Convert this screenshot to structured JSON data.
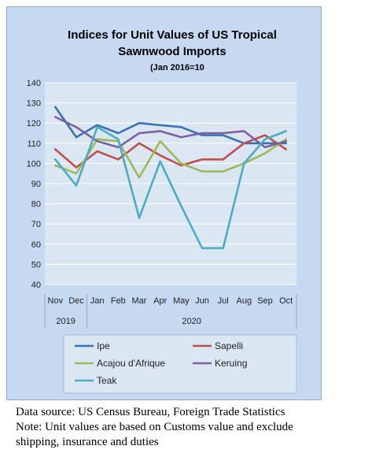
{
  "chart_data": {
    "type": "line",
    "title_line1": "Indices for Unit Values of US Tropical",
    "title_line2": "Sawnwood Imports",
    "subtitle": "(Jan 2016=10",
    "categories": [
      "Nov",
      "Dec",
      "Jan",
      "Feb",
      "Mar",
      "Apr",
      "May",
      "Jun",
      "Jul",
      "Aug",
      "Sep",
      "Oct"
    ],
    "year_groups": [
      {
        "label": "2019",
        "span": 2
      },
      {
        "label": "2020",
        "span": 10
      }
    ],
    "ylim": [
      40,
      140
    ],
    "yticks": [
      40,
      50,
      60,
      70,
      80,
      90,
      100,
      110,
      120,
      130,
      140
    ],
    "grid": true,
    "legend_position": "bottom",
    "series": [
      {
        "name": "Ipe",
        "color": "#3c72b0",
        "values": [
          128,
          113,
          119,
          115,
          120,
          119,
          118,
          114,
          114,
          110,
          110,
          110
        ]
      },
      {
        "name": "Sapelli",
        "color": "#c0504d",
        "values": [
          107,
          98,
          106,
          102,
          110,
          104,
          99,
          102,
          102,
          110,
          114,
          107
        ]
      },
      {
        "name": "Acajou d'Afrique",
        "color": "#9bbb59",
        "values": [
          99,
          95,
          112,
          111,
          93,
          111,
          100,
          96,
          96,
          100,
          105,
          112
        ]
      },
      {
        "name": "Keruing",
        "color": "#7d60a0",
        "values": [
          123,
          118,
          111,
          108,
          115,
          116,
          113,
          115,
          115,
          116,
          108,
          111
        ]
      },
      {
        "name": "Teak",
        "color": "#4bacc6",
        "values": [
          102,
          89,
          118,
          112,
          73,
          101,
          79,
          58,
          58,
          100,
          112,
          116
        ]
      }
    ]
  },
  "note": {
    "line1": "Data source: US Census Bureau, Foreign Trade Statistics",
    "line2": "Note: Unit values are based on Customs value and exclude",
    "line3": "shipping, insurance and duties"
  }
}
